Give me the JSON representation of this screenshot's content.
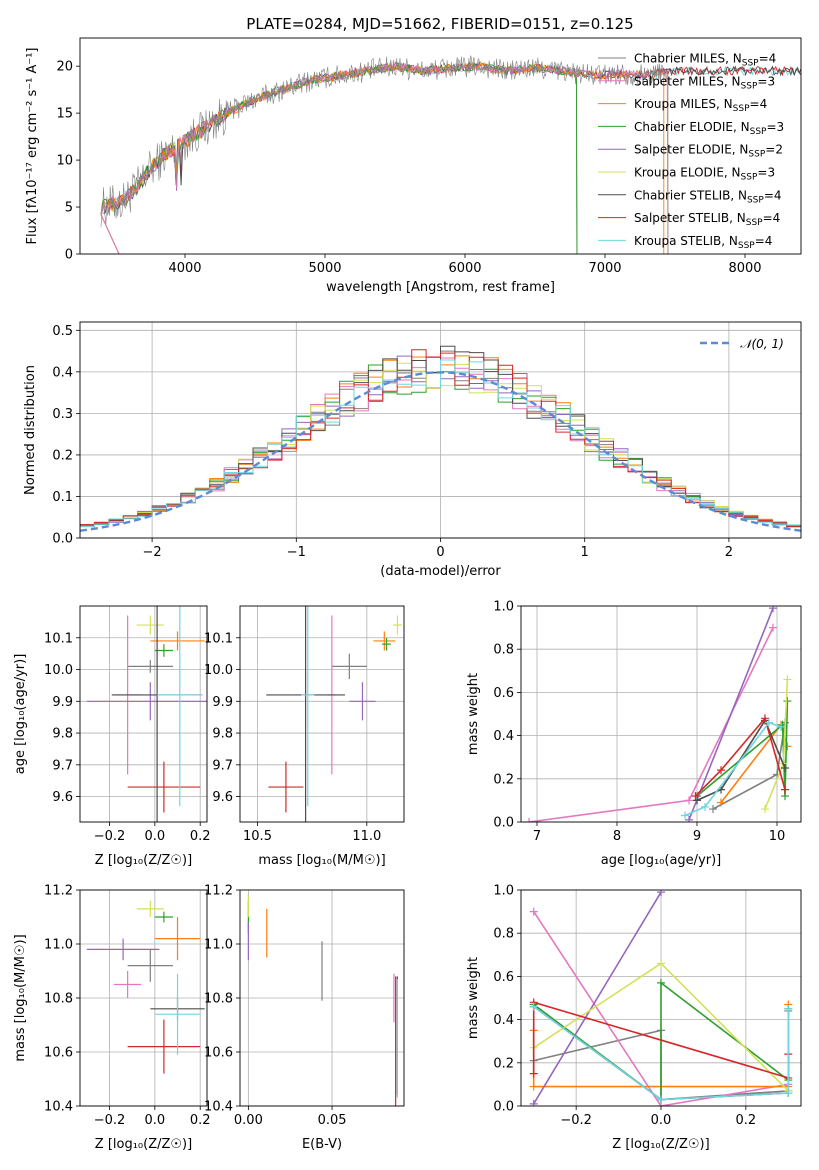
{
  "title": "PLATE=0284, MJD=51662, FIBERID=0151, z=0.125",
  "model_colors": [
    "#808080",
    "#e377c2",
    "#ff7f0e",
    "#2ca02c",
    "#9467bd",
    "#d4e157",
    "#4d4d4d",
    "#d62728",
    "#6fd6e0"
  ],
  "chart_data": [
    {
      "id": "spectrum",
      "type": "line",
      "xlabel": "wavelength [Angstrom, rest frame]",
      "ylabel": "Flux [fλ10⁻¹⁷ erg cm⁻² s⁻¹ A⁻¹]",
      "xlim": [
        3250,
        8400
      ],
      "ylim": [
        0,
        23
      ],
      "xticks": [
        4000,
        5000,
        6000,
        7000,
        8000
      ],
      "yticks": [
        0,
        5,
        10,
        15,
        20
      ],
      "grid": false,
      "legend_position": "top-right",
      "continuum": {
        "x": [
          3400,
          3550,
          3650,
          3750,
          3850,
          3950,
          4050,
          4150,
          4300,
          4500,
          4700,
          4900,
          5100,
          5300,
          5500,
          5700,
          5900,
          6100,
          6300,
          6500,
          6700,
          6900,
          7100,
          7300,
          7450
        ],
        "y": [
          5.0,
          5.5,
          7.0,
          9.0,
          10.5,
          11.5,
          12.5,
          13.5,
          15.0,
          16.5,
          17.5,
          18.5,
          19.0,
          19.5,
          20.0,
          19.5,
          19.8,
          20.0,
          19.5,
          19.8,
          19.5,
          19.0,
          19.2,
          19.0,
          19.5
        ]
      },
      "series": [
        {
          "name": "Chabrier MILES, N_SSP=4",
          "label_main": "Chabrier MILES, N",
          "label_sub": "SSP",
          "label_end": "=4",
          "x_end": 7450
        },
        {
          "name": "Salpeter MILES, N_SSP=3",
          "label_main": "Salpeter MILES, N",
          "label_sub": "SSP",
          "label_end": "=3",
          "x_end": 7450
        },
        {
          "name": "Kroupa MILES, N_SSP=4",
          "label_main": "Kroupa MILES, N",
          "label_sub": "SSP",
          "label_end": "=4",
          "x_end": 7420
        },
        {
          "name": "Chabrier ELODIE, N_SSP=3",
          "label_main": "Chabrier ELODIE, N",
          "label_sub": "SSP",
          "label_end": "=3",
          "x_end": 6800
        },
        {
          "name": "Salpeter ELODIE, N_SSP=2",
          "label_main": "Salpeter ELODIE, N",
          "label_sub": "SSP",
          "label_end": "=2",
          "x_end": 6800
        },
        {
          "name": "Kroupa ELODIE, N_SSP=3",
          "label_main": "Kroupa ELODIE, N",
          "label_sub": "SSP",
          "label_end": "=3",
          "x_end": 6800
        },
        {
          "name": "Chabrier STELIB, N_SSP=4",
          "label_main": "Chabrier STELIB, N",
          "label_sub": "SSP",
          "label_end": "=4",
          "x_end": 8400
        },
        {
          "name": "Salpeter STELIB, N_SSP=4",
          "label_main": "Salpeter STELIB, N",
          "label_sub": "SSP",
          "label_end": "=4",
          "x_end": 8400
        },
        {
          "name": "Kroupa STELIB, N_SSP=4",
          "label_main": "Kroupa STELIB, N",
          "label_sub": "SSP",
          "label_end": "=4",
          "x_end": 8400
        }
      ]
    },
    {
      "id": "residuals",
      "type": "histogram",
      "xlabel": "(data-model)/error",
      "ylabel": "Normed distribution",
      "xlim": [
        -2.5,
        2.5
      ],
      "ylim": [
        0,
        0.52
      ],
      "xticks": [
        -2,
        -1,
        0,
        1,
        2
      ],
      "xtick_labels": [
        "−2",
        "−1",
        "0",
        "1",
        "2"
      ],
      "yticks": [
        0.0,
        0.1,
        0.2,
        0.3,
        0.4,
        0.5
      ],
      "ytick_labels": [
        "0.0",
        "0.1",
        "0.2",
        "0.3",
        "0.4",
        "0.5"
      ],
      "grid": true,
      "legend_position": "top-right",
      "reference_curve": "𝒩(0, 1)",
      "bin_width": 0.1
    },
    {
      "id": "age-vs-Z",
      "type": "errorbar",
      "xlabel": "Z [log₁₀(Z/Z☉)]",
      "ylabel": "age  [log₁₀(age/yr)]",
      "xlim": [
        -0.33,
        0.23
      ],
      "ylim": [
        9.52,
        10.2
      ],
      "xticks": [
        -0.2,
        0.0,
        0.2
      ],
      "xtick_labels": [
        "−0.2",
        "0.0",
        "0.2"
      ],
      "yticks": [
        9.6,
        9.7,
        9.8,
        9.9,
        10.0,
        10.1
      ],
      "ytick_labels": [
        "9.6",
        "9.7",
        "9.8",
        "9.9",
        "10.0",
        "10.1"
      ],
      "grid": true,
      "points": [
        {
          "x": -0.02,
          "y": 10.01,
          "xerr": 0.1,
          "yerr": 0.02
        },
        {
          "x": -0.12,
          "y": 9.92,
          "xerr": 0.06,
          "yerr": 0.25
        },
        {
          "x": 0.1,
          "y": 10.09,
          "xerr": 0.12,
          "yerr": 0.03
        },
        {
          "x": 0.04,
          "y": 10.06,
          "xerr": 0.04,
          "yerr": 0.02
        },
        {
          "x": -0.02,
          "y": 9.9,
          "xerr": 0.28,
          "yerr": 0.06
        },
        {
          "x": -0.02,
          "y": 10.14,
          "xerr": 0.06,
          "yerr": 0.03
        },
        {
          "x": 0.01,
          "y": 9.92,
          "xerr": 0.2,
          "yerr": 0.4
        },
        {
          "x": 0.04,
          "y": 9.63,
          "xerr": 0.16,
          "yerr": 0.08
        },
        {
          "x": 0.11,
          "y": 9.92,
          "xerr": 0.1,
          "yerr": 0.35
        }
      ]
    },
    {
      "id": "age-vs-mass",
      "type": "errorbar",
      "xlabel": "mass [log₁₀(M/M☉)]",
      "ylabel": "",
      "xlim": [
        10.42,
        11.17
      ],
      "ylim": [
        9.52,
        10.2
      ],
      "xticks": [
        10.5,
        11.0
      ],
      "xtick_labels": [
        "10.5",
        "11.0"
      ],
      "yticks": [
        9.6,
        9.7,
        9.8,
        9.9,
        10.0,
        10.1
      ],
      "ytick_labels": [
        "9.6",
        "9.7",
        "9.8",
        "9.9",
        "10.0",
        "10.1"
      ],
      "grid": true,
      "points": [
        {
          "x": 10.92,
          "y": 10.01,
          "xerr": 0.08,
          "yerr": 0.04
        },
        {
          "x": 10.84,
          "y": 9.92,
          "xerr": 0.02,
          "yerr": 0.25
        },
        {
          "x": 11.08,
          "y": 10.09,
          "xerr": 0.05,
          "yerr": 0.03
        },
        {
          "x": 11.09,
          "y": 10.08,
          "xerr": 0.02,
          "yerr": 0.02
        },
        {
          "x": 10.98,
          "y": 9.9,
          "xerr": 0.06,
          "yerr": 0.06
        },
        {
          "x": 11.14,
          "y": 10.14,
          "xerr": 0.02,
          "yerr": 0.03
        },
        {
          "x": 10.72,
          "y": 9.92,
          "xerr": 0.18,
          "yerr": 0.4
        },
        {
          "x": 10.63,
          "y": 9.63,
          "xerr": 0.08,
          "yerr": 0.08
        },
        {
          "x": 10.73,
          "y": 9.92,
          "xerr": 0.03,
          "yerr": 0.35
        }
      ]
    },
    {
      "id": "mass-weight-vs-age",
      "type": "line",
      "xlabel": "age  [log₁₀(age/yr)]",
      "ylabel": "mass weight",
      "xlim": [
        6.8,
        10.3
      ],
      "ylim": [
        0,
        1
      ],
      "xticks": [
        7,
        8,
        9,
        10
      ],
      "xtick_labels": [
        "7",
        "8",
        "9",
        "10"
      ],
      "yticks": [
        0.0,
        0.2,
        0.4,
        0.6,
        0.8,
        1.0
      ],
      "ytick_labels": [
        "0.0",
        "0.2",
        "0.4",
        "0.6",
        "0.8",
        "1.0"
      ],
      "grid": true,
      "series": [
        {
          "x": [
            9.2,
            10.0,
            10.1
          ],
          "y": [
            0.06,
            0.22,
            0.46
          ]
        },
        {
          "x": [
            6.9,
            8.9,
            9.95
          ],
          "y": [
            0.0,
            0.1,
            0.9
          ]
        },
        {
          "x": [
            9.3,
            10.05,
            10.13
          ],
          "y": [
            0.09,
            0.45,
            0.35
          ]
        },
        {
          "x": [
            9.0,
            10.07,
            10.1,
            10.13
          ],
          "y": [
            0.12,
            0.45,
            0.12,
            0.56
          ]
        },
        {
          "x": [
            8.9,
            9.95
          ],
          "y": [
            0.01,
            0.99
          ]
        },
        {
          "x": [
            9.85,
            10.08,
            10.13
          ],
          "y": [
            0.06,
            0.27,
            0.66
          ]
        },
        {
          "x": [
            9.0,
            9.3,
            9.85,
            10.1
          ],
          "y": [
            0.1,
            0.15,
            0.47,
            0.25
          ]
        },
        {
          "x": [
            8.98,
            9.3,
            9.85,
            10.1
          ],
          "y": [
            0.12,
            0.24,
            0.48,
            0.15
          ]
        },
        {
          "x": [
            8.85,
            9.1,
            9.9,
            10.05
          ],
          "y": [
            0.03,
            0.07,
            0.46,
            0.44
          ]
        }
      ]
    },
    {
      "id": "mass-vs-Z",
      "type": "errorbar",
      "xlabel": "Z [log₁₀(Z/Z☉)]",
      "ylabel": "mass [log₁₀(M/M☉)]",
      "xlim": [
        -0.33,
        0.23
      ],
      "ylim": [
        10.4,
        11.2
      ],
      "xticks": [
        -0.2,
        0.0,
        0.2
      ],
      "xtick_labels": [
        "−0.2",
        "0.0",
        "0.2"
      ],
      "yticks": [
        10.4,
        10.6,
        10.8,
        11.0,
        11.2
      ],
      "ytick_labels": [
        "10.4",
        "10.6",
        "10.8",
        "11.0",
        "11.2"
      ],
      "grid": true,
      "points": [
        {
          "x": -0.02,
          "y": 10.92,
          "xerr": 0.1,
          "yerr": 0.06
        },
        {
          "x": -0.12,
          "y": 10.85,
          "xerr": 0.06,
          "yerr": 0.05
        },
        {
          "x": 0.1,
          "y": 11.02,
          "xerr": 0.1,
          "yerr": 0.08
        },
        {
          "x": 0.04,
          "y": 11.1,
          "xerr": 0.04,
          "yerr": 0.02
        },
        {
          "x": -0.14,
          "y": 10.98,
          "xerr": 0.16,
          "yerr": 0.04
        },
        {
          "x": -0.02,
          "y": 11.13,
          "xerr": 0.06,
          "yerr": 0.03
        },
        {
          "x": 0.1,
          "y": 10.76,
          "xerr": 0.12,
          "yerr": 0.04
        },
        {
          "x": 0.04,
          "y": 10.62,
          "xerr": 0.16,
          "yerr": 0.1
        },
        {
          "x": 0.1,
          "y": 10.74,
          "xerr": 0.1,
          "yerr": 0.15
        }
      ]
    },
    {
      "id": "mass-vs-EBV",
      "type": "errorbar",
      "xlabel": "E(B-V)",
      "ylabel": "",
      "xlim": [
        -0.005,
        0.093
      ],
      "ylim": [
        10.4,
        11.2
      ],
      "xticks": [
        0.0,
        0.05
      ],
      "xtick_labels": [
        "0.00",
        "0.05"
      ],
      "yticks": [
        10.4,
        10.6,
        10.8,
        11.0,
        11.2
      ],
      "ytick_labels": [
        "10.4",
        "10.6",
        "10.8",
        "11.0",
        "11.2"
      ],
      "grid": true,
      "points": [
        {
          "x": 0.044,
          "y": 10.9,
          "xerr": 0,
          "yerr": 0.11
        },
        {
          "x": 0.087,
          "y": 10.8,
          "xerr": 0,
          "yerr": 0.09
        },
        {
          "x": 0.011,
          "y": 11.04,
          "xerr": 0,
          "yerr": 0.09
        },
        {
          "x": 0.0,
          "y": 11.1,
          "xerr": 0,
          "yerr": 0.06
        },
        {
          "x": 0.0,
          "y": 11.01,
          "xerr": 0,
          "yerr": 0.07
        },
        {
          "x": 0.0,
          "y": 11.14,
          "xerr": 0,
          "yerr": 0.04
        },
        {
          "x": 0.089,
          "y": 10.66,
          "xerr": 0,
          "yerr": 0.22
        },
        {
          "x": 0.088,
          "y": 10.64,
          "xerr": 0,
          "yerr": 0.24
        },
        {
          "x": 0.089,
          "y": 10.65,
          "xerr": 0,
          "yerr": 0.22
        }
      ]
    },
    {
      "id": "mass-weight-vs-Z",
      "type": "line",
      "xlabel": "Z [log₁₀(Z/Z☉)]",
      "ylabel": "mass weight",
      "xlim": [
        -0.33,
        0.33
      ],
      "ylim": [
        0,
        1
      ],
      "xticks": [
        -0.2,
        0.0,
        0.2
      ],
      "xtick_labels": [
        "−0.2",
        "0.0",
        "0.2"
      ],
      "yticks": [
        0.0,
        0.2,
        0.4,
        0.6,
        0.8,
        1.0
      ],
      "ytick_labels": [
        "0.0",
        "0.2",
        "0.4",
        "0.6",
        "0.8",
        "1.0"
      ],
      "grid": true,
      "series": [
        {
          "x": [
            -0.3,
            0.0,
            0.0,
            0.3,
            0.3
          ],
          "y": [
            0.21,
            0.35,
            0.03,
            0.07,
            0.44
          ]
        },
        {
          "x": [
            -0.3,
            0.0,
            0.3
          ],
          "y": [
            0.9,
            0.0,
            0.1
          ]
        },
        {
          "x": [
            -0.3,
            -0.3,
            0.3,
            0.3
          ],
          "y": [
            0.35,
            0.09,
            0.09,
            0.47
          ]
        },
        {
          "x": [
            -0.3,
            0.0,
            0.0,
            0.3,
            0.3
          ],
          "y": [
            0.47,
            0.03,
            0.57,
            0.12,
            0.45
          ]
        },
        {
          "x": [
            -0.3,
            0.0
          ],
          "y": [
            0.01,
            0.99
          ]
        },
        {
          "x": [
            -0.3,
            0.0,
            0.3,
            0.3
          ],
          "y": [
            0.27,
            0.66,
            0.07,
            0.06
          ]
        },
        {
          "x": [
            -0.3,
            0.0,
            0.3
          ],
          "y": [
            0.46,
            0.03,
            0.06
          ]
        },
        {
          "x": [
            -0.3,
            -0.3,
            0.3,
            0.3
          ],
          "y": [
            0.15,
            0.48,
            0.13,
            0.24
          ]
        },
        {
          "x": [
            -0.3,
            0.0,
            0.3,
            0.3
          ],
          "y": [
            0.46,
            0.03,
            0.06,
            0.45
          ]
        }
      ]
    }
  ]
}
